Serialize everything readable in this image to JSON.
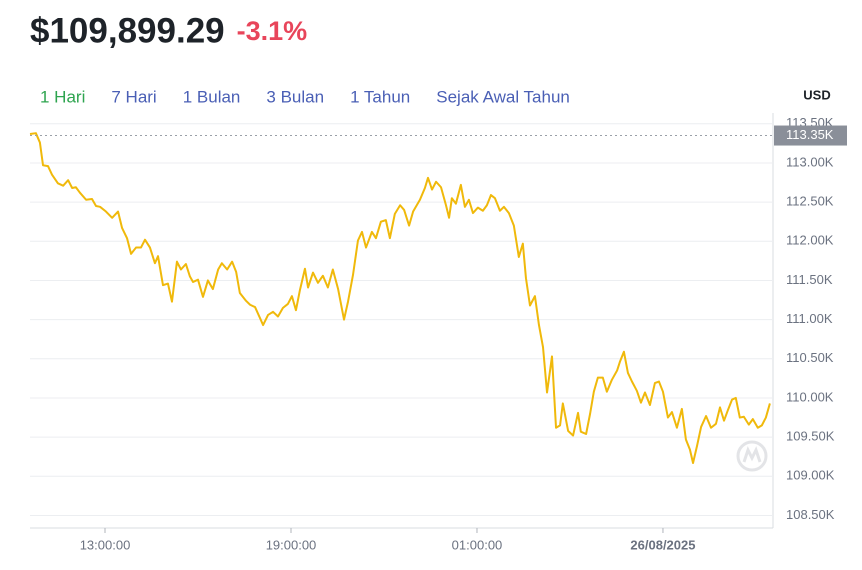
{
  "header": {
    "price": "$109,899.29",
    "change": "-3.1%"
  },
  "ranges": [
    "1 Hari",
    "7 Hari",
    "1 Bulan",
    "3 Bulan",
    "1 Tahun",
    "Sejak Awal Tahun"
  ],
  "active_range": 0,
  "chart_data": {
    "type": "line",
    "currency": "USD",
    "color": "#f0b90b",
    "grid": true,
    "xlim": [
      10.58,
      34.55
    ],
    "ylim": [
      108340,
      113510
    ],
    "xticks": [
      {
        "value": 13,
        "label": "13:00:00"
      },
      {
        "value": 19,
        "label": "19:00:00"
      },
      {
        "value": 25,
        "label": "01:00:00"
      },
      {
        "value": 31,
        "label": "26/08/2025"
      }
    ],
    "yticks": [
      {
        "value": 113500,
        "label": "113.50K"
      },
      {
        "value": 113000,
        "label": "113.00K"
      },
      {
        "value": 112500,
        "label": "112.50K"
      },
      {
        "value": 112000,
        "label": "112.00K"
      },
      {
        "value": 111500,
        "label": "111.50K"
      },
      {
        "value": 111000,
        "label": "111.00K"
      },
      {
        "value": 110500,
        "label": "110.50K"
      },
      {
        "value": 110000,
        "label": "110.00K"
      },
      {
        "value": 109500,
        "label": "109.50K"
      },
      {
        "value": 109000,
        "label": "109.00K"
      },
      {
        "value": 108500,
        "label": "108.50K"
      }
    ],
    "price_marker": {
      "value": 113350,
      "label": "113.35K"
    },
    "x": [
      10.58,
      10.77,
      10.9,
      11.0,
      11.16,
      11.29,
      11.48,
      11.65,
      11.81,
      11.94,
      12.06,
      12.19,
      12.39,
      12.58,
      12.71,
      12.84,
      13.03,
      13.23,
      13.42,
      13.55,
      13.71,
      13.84,
      14.0,
      14.16,
      14.29,
      14.45,
      14.61,
      14.71,
      14.87,
      15.03,
      15.16,
      15.32,
      15.45,
      15.61,
      15.74,
      15.84,
      16.0,
      16.16,
      16.32,
      16.48,
      16.65,
      16.77,
      16.94,
      17.1,
      17.23,
      17.35,
      17.55,
      17.68,
      17.84,
      18.0,
      18.1,
      18.26,
      18.42,
      18.58,
      18.74,
      18.9,
      19.03,
      19.16,
      19.29,
      19.45,
      19.55,
      19.71,
      19.87,
      20.03,
      20.19,
      20.35,
      20.52,
      20.71,
      20.84,
      21.0,
      21.16,
      21.29,
      21.42,
      21.61,
      21.74,
      21.9,
      22.06,
      22.19,
      22.35,
      22.52,
      22.65,
      22.81,
      22.94,
      23.16,
      23.32,
      23.42,
      23.55,
      23.68,
      23.84,
      24.0,
      24.1,
      24.19,
      24.32,
      24.48,
      24.61,
      24.74,
      24.87,
      25.03,
      25.19,
      25.32,
      25.45,
      25.58,
      25.74,
      25.87,
      26.03,
      26.19,
      26.35,
      26.48,
      26.58,
      26.71,
      26.87,
      27.0,
      27.13,
      27.26,
      27.42,
      27.55,
      27.68,
      27.77,
      27.94,
      28.1,
      28.26,
      28.35,
      28.52,
      28.65,
      28.77,
      28.9,
      29.06,
      29.19,
      29.35,
      29.52,
      29.61,
      29.74,
      29.87,
      30.0,
      30.16,
      30.29,
      30.42,
      30.58,
      30.74,
      30.87,
      31.0,
      31.16,
      31.29,
      31.45,
      31.61,
      31.74,
      31.87,
      31.97,
      32.1,
      32.23,
      32.39,
      32.55,
      32.71,
      32.84,
      32.97,
      33.1,
      33.23,
      33.35,
      33.48,
      33.61,
      33.77,
      33.9,
      34.06,
      34.19,
      34.32,
      34.45
    ],
    "values": [
      113370,
      113380,
      113260,
      112970,
      112960,
      112850,
      112740,
      112710,
      112780,
      112680,
      112690,
      112620,
      112530,
      112540,
      112450,
      112440,
      112380,
      112300,
      112380,
      112170,
      112040,
      111840,
      111920,
      111920,
      112020,
      111920,
      111720,
      111810,
      111440,
      111460,
      111230,
      111740,
      111640,
      111710,
      111550,
      111480,
      111510,
      111290,
      111500,
      111390,
      111640,
      111720,
      111640,
      111740,
      111610,
      111340,
      111240,
      111190,
      111160,
      111020,
      110930,
      111060,
      111100,
      111040,
      111150,
      111200,
      111300,
      111120,
      111380,
      111650,
      111410,
      111600,
      111470,
      111560,
      111410,
      111640,
      111390,
      111000,
      111230,
      111570,
      112010,
      112120,
      111920,
      112120,
      112040,
      112250,
      112270,
      112040,
      112350,
      112460,
      112400,
      112200,
      112380,
      112530,
      112680,
      112810,
      112660,
      112760,
      112690,
      112460,
      112300,
      112550,
      112480,
      112720,
      112440,
      112530,
      112360,
      112430,
      112390,
      112460,
      112590,
      112550,
      112390,
      112440,
      112360,
      112200,
      111800,
      111970,
      111530,
      111180,
      111300,
      110930,
      110650,
      110070,
      110530,
      109620,
      109650,
      109930,
      109580,
      109520,
      109810,
      109570,
      109540,
      109800,
      110080,
      110260,
      110260,
      110080,
      110230,
      110350,
      110460,
      110590,
      110320,
      110210,
      110090,
      109940,
      110070,
      109910,
      110190,
      110210,
      110080,
      109750,
      109820,
      109620,
      109860,
      109470,
      109340,
      109170,
      109390,
      109630,
      109770,
      109620,
      109670,
      109880,
      109710,
      109850,
      109980,
      110000,
      109750,
      109760,
      109660,
      109730,
      109620,
      109650,
      109750,
      109930
    ]
  }
}
